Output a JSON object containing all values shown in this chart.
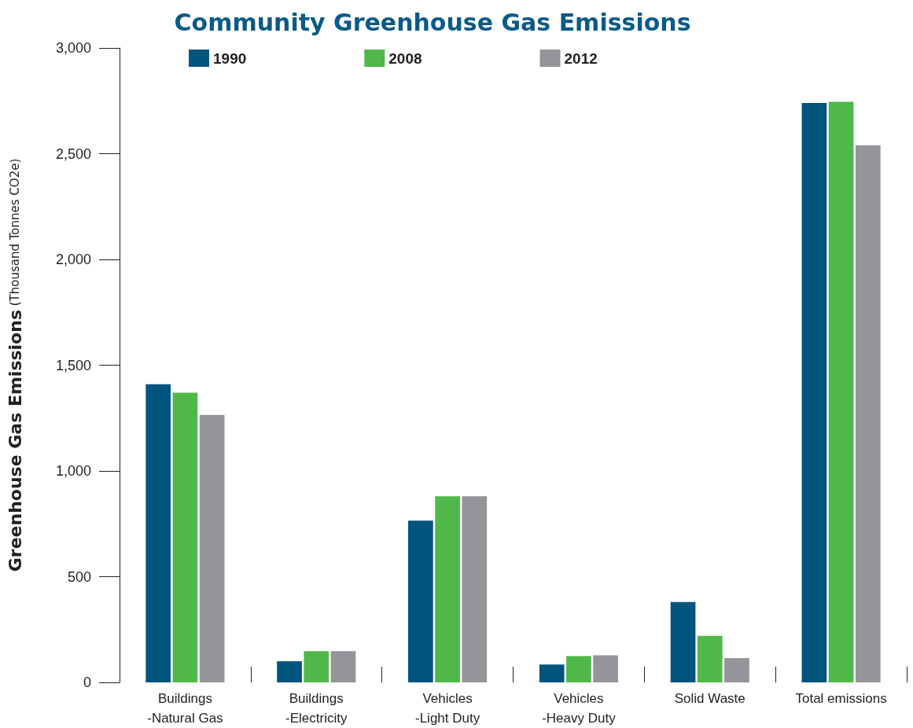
{
  "chart_data": {
    "type": "bar",
    "title": "Community Greenhouse Gas Emissions",
    "ylabel": "Greenhouse Gas Emissions (Thousand Tonnes CO2e)",
    "categories": [
      "Buildings\n-Natural Gas",
      "Buildings\n-Electricity",
      "Vehicles\n-Light Duty",
      "Vehicles\n-Heavy Duty",
      "Solid Waste",
      "Total emissions"
    ],
    "series": [
      {
        "name": "1990",
        "color": "#00557f",
        "values": [
          1410,
          100,
          765,
          85,
          380,
          2740
        ]
      },
      {
        "name": "2008",
        "color": "#50b848",
        "values": [
          1370,
          148,
          880,
          125,
          220,
          2745
        ]
      },
      {
        "name": "2012",
        "color": "#939598",
        "values": [
          1265,
          148,
          880,
          128,
          115,
          2540
        ]
      }
    ],
    "ylim": [
      0,
      3000
    ],
    "yticks": [
      0,
      500,
      {
        "value": 1000,
        "label": "1,000"
      },
      {
        "value": 1500,
        "label": "1,500"
      },
      {
        "value": 2000,
        "label": "2,000"
      },
      {
        "value": 2500,
        "label": "2,500"
      },
      {
        "value": 3000,
        "label": "3,000"
      }
    ],
    "grid": false,
    "legend": "top left"
  }
}
